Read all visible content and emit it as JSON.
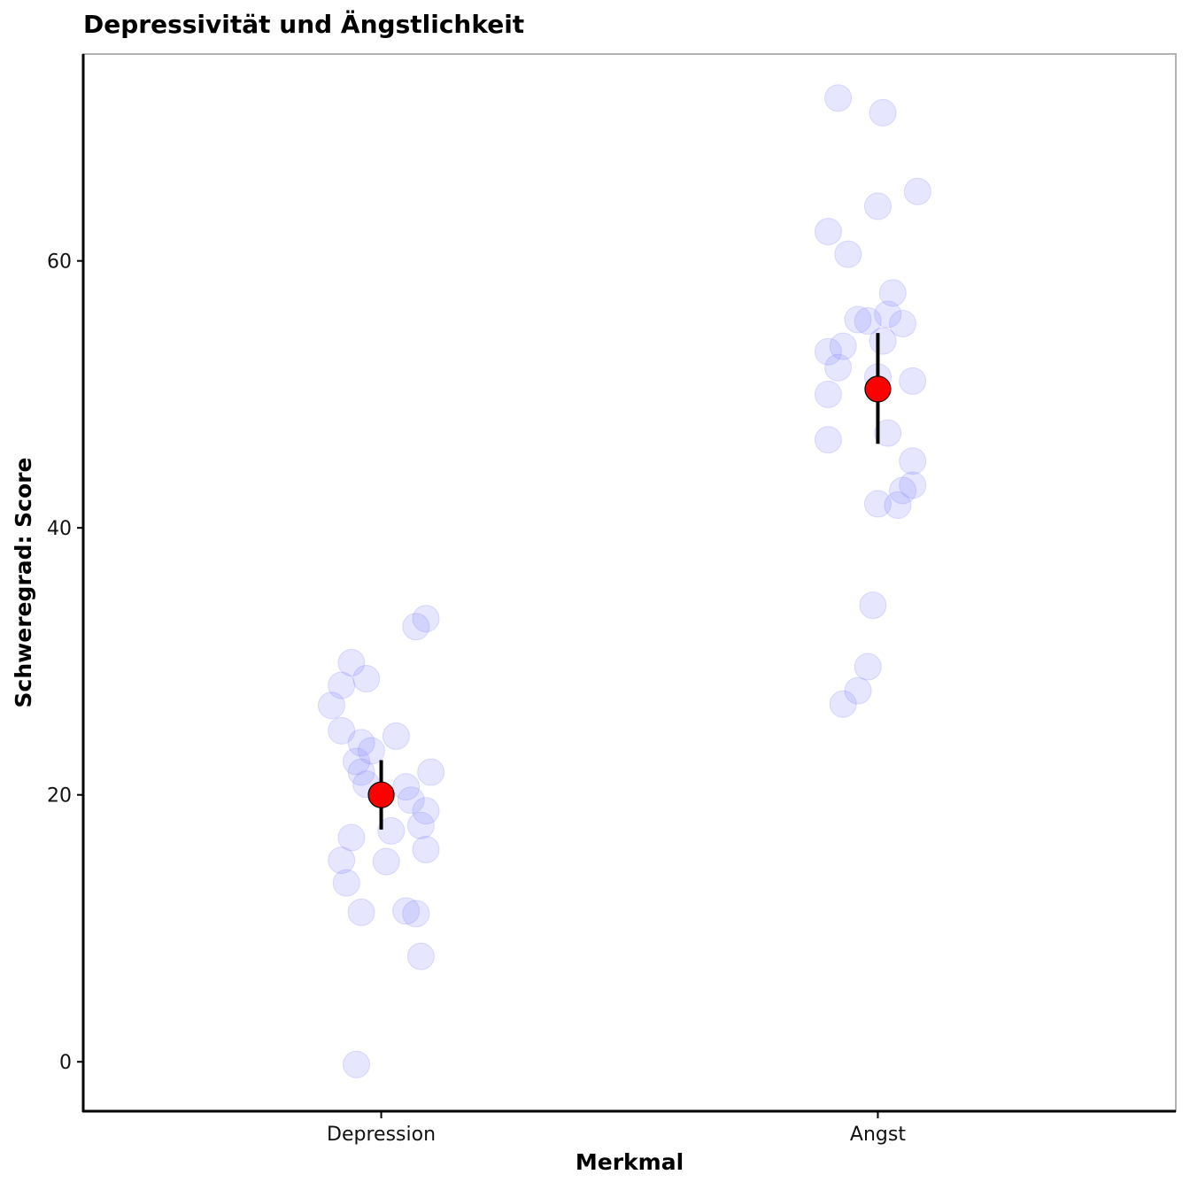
{
  "chart_data": {
    "type": "scatter",
    "title": "Depressivität und Ängstlichkeit",
    "xlabel": "Merkmal",
    "ylabel": "Schweregrad: Score",
    "categories": [
      "Depression",
      "Angst"
    ],
    "ylim": [
      -3.7,
      75.5
    ],
    "yticks": [
      0,
      20,
      40,
      60
    ],
    "grid": false,
    "colors": {
      "points": "#8080ff",
      "mean": "#ff0000",
      "errorbar": "#000000",
      "axis": "#000000",
      "panel_border": "#b3b3b3"
    },
    "series": [
      {
        "category": "Depression",
        "jitter": [
          -0.05,
          0.08,
          -0.04,
          0.05,
          -0.07,
          -0.08,
          0.01,
          -0.06,
          0.02,
          -0.03,
          -0.04,
          -0.05,
          -0.02,
          0.03,
          0.09,
          0.08,
          -0.04,
          0.09,
          0.06,
          0.1,
          0.09,
          -0.06,
          -0.08,
          -0.03,
          0.05,
          0.07,
          -0.1,
          0.07,
          -0.08
        ],
        "values": [
          -0.2,
          7.9,
          11.2,
          11.3,
          13.4,
          15.1,
          15.0,
          16.8,
          17.3,
          20.8,
          21.7,
          22.5,
          23.3,
          24.4,
          15.9,
          17.7,
          23.9,
          18.8,
          19.6,
          21.7,
          33.2,
          29.9,
          28.2,
          28.7,
          20.6,
          32.6,
          26.7,
          11.1,
          24.8
        ],
        "mean": 20.0,
        "ci": [
          17.4,
          22.6
        ]
      },
      {
        "category": "Angst",
        "jitter": [
          -0.07,
          -0.04,
          -0.1,
          0.07,
          -0.01,
          0.0,
          0.04,
          0.02,
          0.07,
          -0.1,
          -0.08,
          -0.07,
          -0.1,
          -0.04,
          0.0,
          0.01,
          0.05,
          0.03,
          0.08,
          0.0,
          -0.1,
          -0.06,
          -0.08,
          -0.02,
          0.01,
          0.05,
          -0.02,
          0.02,
          0.07
        ],
        "values": [
          26.8,
          27.8,
          46.6,
          45.0,
          34.2,
          41.8,
          41.7,
          47.1,
          43.2,
          53.2,
          52.0,
          53.6,
          62.2,
          55.6,
          51.3,
          54.0,
          55.3,
          57.6,
          65.2,
          64.1,
          50.0,
          60.5,
          72.2,
          55.5,
          71.1,
          42.8,
          29.6,
          56.0,
          51.0
        ],
        "mean": 50.4,
        "ci": [
          46.3,
          54.6
        ]
      }
    ]
  }
}
